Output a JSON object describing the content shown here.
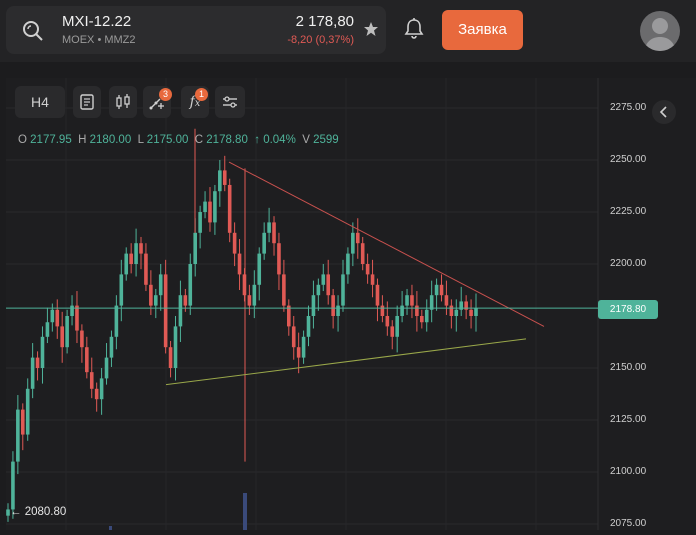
{
  "header": {
    "symbol": "MXI-12.22",
    "exchange_line": "MOEX • MMZ2",
    "price": "2 178,80",
    "change": "-8,20 (0,37%)",
    "order_label": "Заявка",
    "icons": [
      "search-icon",
      "star-icon",
      "bell-icon",
      "avatar"
    ]
  },
  "toolbar": {
    "timeframe": "H4",
    "drawings_badge": "3",
    "indicators_badge": "1"
  },
  "ohlc": {
    "o_label": "O",
    "o": "2177.95",
    "h_label": "H",
    "h": "2180.00",
    "l_label": "L",
    "l": "2175.00",
    "c_label": "C",
    "c": "2178.80",
    "pct": "↑ 0.04%",
    "v_label": "V",
    "v": "2599"
  },
  "low_marker": "← 2080.80",
  "current_price_tag": "2178.80",
  "colors": {
    "up": "#4fb39a",
    "down": "#e05a55",
    "accent": "#e8693d",
    "trend_upper": "#c8514e",
    "trend_lower": "#9aa84a"
  },
  "chart_data": {
    "type": "candlestick",
    "y_ticks": [
      "2275.00",
      "2250.00",
      "2225.00",
      "2200.00",
      "2150.00",
      "2125.00",
      "2100.00",
      "2075.00"
    ],
    "ylim": [
      2075,
      2280
    ],
    "current": 2178.8,
    "period_low": 2080.8,
    "closes": [
      2082,
      2105,
      2130,
      2118,
      2140,
      2155,
      2150,
      2165,
      2172,
      2178,
      2170,
      2160,
      2175,
      2180,
      2168,
      2160,
      2148,
      2140,
      2135,
      2145,
      2155,
      2165,
      2180,
      2195,
      2205,
      2200,
      2210,
      2205,
      2190,
      2180,
      2185,
      2195,
      2160,
      2150,
      2170,
      2185,
      2180,
      2200,
      2215,
      2225,
      2230,
      2220,
      2235,
      2245,
      2238,
      2215,
      2205,
      2195,
      2185,
      2180,
      2190,
      2205,
      2215,
      2220,
      2210,
      2195,
      2180,
      2170,
      2160,
      2155,
      2165,
      2175,
      2185,
      2190,
      2195,
      2185,
      2175,
      2180,
      2195,
      2205,
      2215,
      2210,
      2200,
      2195,
      2190,
      2180,
      2175,
      2170,
      2165,
      2175,
      2180,
      2185,
      2180,
      2175,
      2172,
      2178,
      2185,
      2190,
      2185,
      2180,
      2175,
      2178,
      2182,
      2178,
      2175,
      2178.8
    ]
  }
}
